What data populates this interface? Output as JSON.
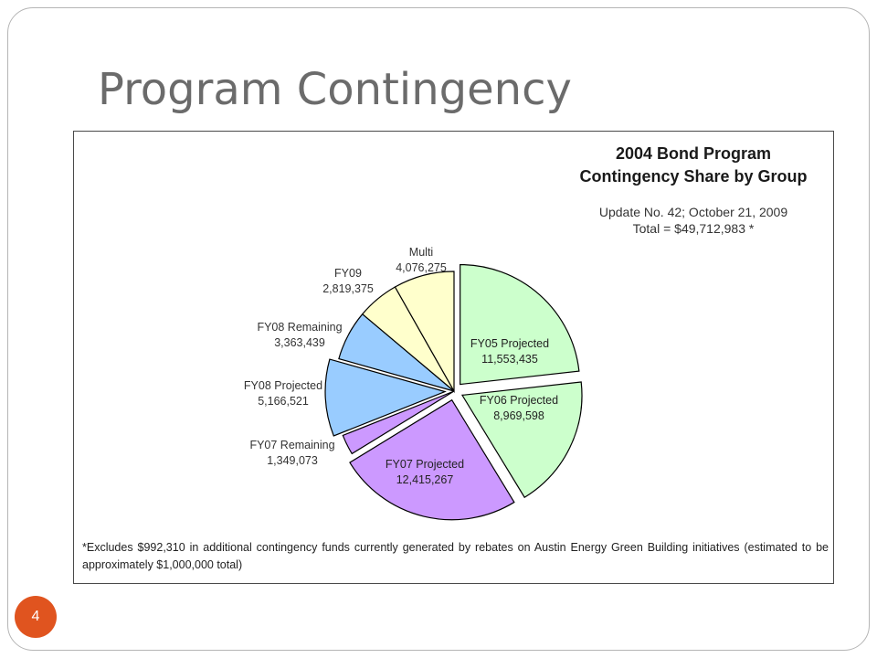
{
  "slide": {
    "title": "Program Contingency",
    "page_number": "4"
  },
  "chart_data": {
    "type": "pie",
    "title_lines": [
      "2004 Bond Program",
      "Contingency Share by Group"
    ],
    "subtitle_lines": [
      "Update No. 42; October 21, 2009",
      "Total = $49,712,983 *"
    ],
    "footnote": "*Excludes $992,310 in additional contingency funds currently generated by rebates on Austin Energy Green Building initiatives (estimated to be approximately $1,000,000 total)",
    "slices": [
      {
        "name": "FY05 Projected",
        "value_label": "11,553,435",
        "value": 11553435,
        "color": "#ccffcc",
        "exploded": true
      },
      {
        "name": "FY06 Projected",
        "value_label": "8,969,598",
        "value": 8969598,
        "color": "#ccffcc",
        "exploded": true
      },
      {
        "name": "FY07 Projected",
        "value_label": "12,415,267",
        "value": 12415267,
        "color": "#cc99ff",
        "exploded": true
      },
      {
        "name": "FY07 Remaining",
        "value_label": "1,349,073",
        "value": 1349073,
        "color": "#cc99ff",
        "exploded": false
      },
      {
        "name": "FY08 Projected",
        "value_label": "5,166,521",
        "value": 5166521,
        "color": "#99ccff",
        "exploded": true
      },
      {
        "name": "FY08 Remaining",
        "value_label": "3,363,439",
        "value": 3363439,
        "color": "#99ccff",
        "exploded": false
      },
      {
        "name": "FY09",
        "value_label": "2,819,375",
        "value": 2819375,
        "color": "#ffffcc",
        "exploded": false
      },
      {
        "name": "Multi",
        "value_label": "4,076,275",
        "value": 4076275,
        "color": "#ffffcc",
        "exploded": false
      }
    ]
  }
}
